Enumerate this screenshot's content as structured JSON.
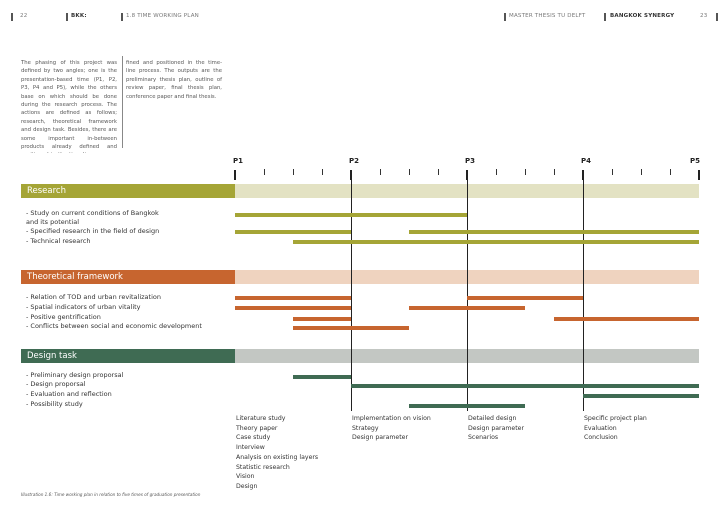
{
  "header": {
    "left_page": "22",
    "left_label": "BKK:",
    "left_chapter": "1.8 TIME WORKING PLAN",
    "right_title": "MASTER THESIS TU DELFT",
    "right_project": "BANGKOK SYNERGY",
    "right_page": "23"
  },
  "intro": {
    "col1": "The phasing of this project was defined by two angles; one is the presentation-based time (P1, P2, P3, P4 and P5), while the others base on which should be done during the research process. The actions are defined as follows; research, theoretical framework and design task. Besides, there are some important in-between products already defined and positioned in the time-line process. The outputs are the preliminary thesis plan, outline of review paper, final thesis plan, conference paper and final thesis.",
    "col2": "fined and positioned in the time-line process. The outputs are the preliminary thesis plan, outline of review paper, final thesis plan, conference paper and final thesis."
  },
  "phases": [
    "P1",
    "P2",
    "P3",
    "P4",
    "P5"
  ],
  "sections": [
    {
      "title": "Research",
      "color": "#a5a536",
      "band_color": "#e3e2c3",
      "items": [
        "- Study on current conditions of Bangkok",
        "and its potential",
        "- Specified research in the field of design",
        "- Technical research"
      ],
      "bar_rows": [
        [
          [
            0.0,
            2.0
          ]
        ],
        [
          [
            0.0,
            1.0
          ],
          [
            1.5,
            4.0
          ]
        ],
        [
          [
            0.5,
            4.0
          ]
        ]
      ]
    },
    {
      "title": "Theoretical framework",
      "color": "#c7652f",
      "band_color": "#efd3bf",
      "items": [
        "- Relation of TOD and urban revitalization",
        "- Spatial indicators of urban vitality",
        "- Positive gentrification",
        "- Conflicts between social  and economic development"
      ],
      "bar_rows": [
        [
          [
            0.0,
            1.0
          ],
          [
            2.0,
            3.0
          ]
        ],
        [
          [
            0.0,
            1.0
          ],
          [
            1.5,
            2.5
          ]
        ],
        [
          [
            0.5,
            1.0
          ],
          [
            2.75,
            4.0
          ]
        ],
        [
          [
            0.5,
            1.5
          ]
        ]
      ]
    },
    {
      "title": "Design task",
      "color": "#3f6b53",
      "band_color": "#c3c7c3",
      "items": [
        "- Preliminary design proporsal",
        "- Design proporsal",
        "- Evaluation and reflection",
        "- Possibility study"
      ],
      "bar_rows": [
        [
          [
            0.5,
            1.0
          ]
        ],
        [
          [
            1.0,
            4.0
          ]
        ],
        [
          [
            3.0,
            4.0
          ]
        ],
        [
          [
            1.5,
            2.5
          ]
        ]
      ]
    }
  ],
  "milestones": [
    [
      "Literature study",
      "Theory paper",
      "Case study",
      "Interview",
      "Analysis on existing layers",
      "Statistic research",
      "Vision",
      "Design"
    ],
    [
      "Implementation on vision",
      "Strategy",
      "Design parameter"
    ],
    [
      "Detailed design",
      "Design parameter",
      "Scenarios"
    ],
    [
      "Specific project plan",
      "Evaluation",
      "Conclusion"
    ]
  ],
  "caption": "Illustration 1.6: Time working plan in relation to five times of graduation presentation"
}
